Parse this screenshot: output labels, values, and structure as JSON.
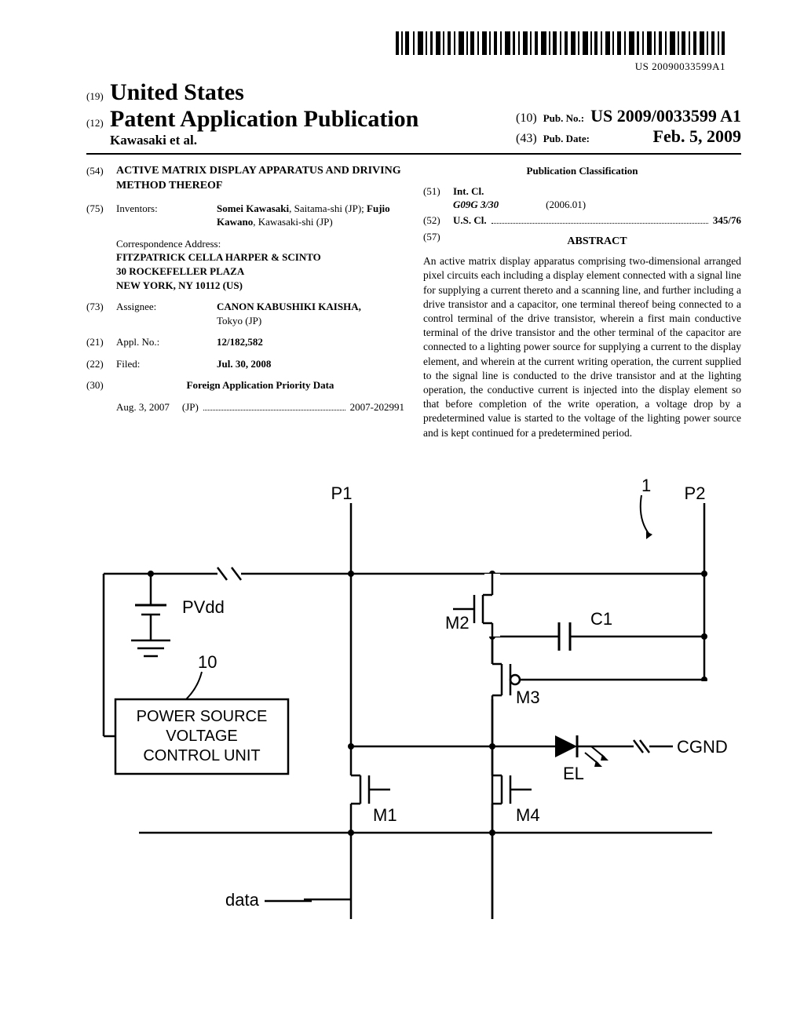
{
  "barcode": {
    "text": "US 20090033599A1"
  },
  "header": {
    "code19": "(19)",
    "country": "United States",
    "code12": "(12)",
    "docType": "Patent Application Publication",
    "authors": "Kawasaki et al."
  },
  "pub": {
    "code10": "(10)",
    "pubNoLabel": "Pub. No.:",
    "pubNo": "US 2009/0033599 A1",
    "code43": "(43)",
    "pubDateLabel": "Pub. Date:",
    "pubDate": "Feb. 5, 2009"
  },
  "left": {
    "code54": "(54)",
    "title": "ACTIVE MATRIX DISPLAY APPARATUS AND DRIVING METHOD THEREOF",
    "code75": "(75)",
    "inventorsLabel": "Inventors:",
    "inventors": "Somei Kawasaki, Saitama-shi (JP); Fujio Kawano, Kawasaki-shi (JP)",
    "corrLabel": "Correspondence Address:",
    "corrName": "FITZPATRICK CELLA HARPER & SCINTO",
    "corrLine1": "30 ROCKEFELLER PLAZA",
    "corrLine2": "NEW YORK, NY 10112 (US)",
    "code73": "(73)",
    "assigneeLabel": "Assignee:",
    "assignee": "CANON KABUSHIKI KAISHA,",
    "assigneeLoc": "Tokyo (JP)",
    "code21": "(21)",
    "applNoLabel": "Appl. No.:",
    "applNo": "12/182,582",
    "code22": "(22)",
    "filedLabel": "Filed:",
    "filed": "Jul. 30, 2008",
    "code30": "(30)",
    "foreignLabel": "Foreign Application Priority Data",
    "foreignDate": "Aug. 3, 2007",
    "foreignCountry": "(JP)",
    "foreignNo": "2007-202991"
  },
  "right": {
    "pubClassLabel": "Publication Classification",
    "code51": "(51)",
    "intClLabel": "Int. Cl.",
    "intClCode": "G09G 3/30",
    "intClYear": "(2006.01)",
    "code52": "(52)",
    "usClLabel": "U.S. Cl.",
    "usClCode": "345/76",
    "code57": "(57)",
    "abstractLabel": "ABSTRACT",
    "abstract": "An active matrix display apparatus comprising two-dimensional arranged pixel circuits each including a display element connected with a signal line for supplying a current thereto and a scanning line, and further including a drive transistor and a capacitor, one terminal thereof being connected to a control terminal of the drive transistor, wherein a first main conductive terminal of the drive transistor and the other terminal of the capacitor are connected to a lighting power source for supplying a current to the display element, and wherein at the current writing operation, the current supplied to the signal line is conducted to the drive transistor and at the lighting operation, the conductive current is injected into the display element so that before completion of the write operation, a voltage drop by a predetermined value is started to the voltage of the lighting power source and is kept continued for a predetermined period."
  },
  "figure": {
    "labels": {
      "P1": "P1",
      "P2": "P2",
      "PVdd": "PVdd",
      "ten": "10",
      "powerBox": "POWER SOURCE VOLTAGE CONTROL UNIT",
      "M1": "M1",
      "M2": "M2",
      "M3": "M3",
      "M4": "M4",
      "C1": "C1",
      "EL": "EL",
      "CGND": "CGND",
      "data": "data",
      "one": "1"
    },
    "style": {
      "stroke": "#000000",
      "strokeWidth": 2.5,
      "fontFamily": "Arial, sans-serif",
      "fontSize": 22
    }
  }
}
